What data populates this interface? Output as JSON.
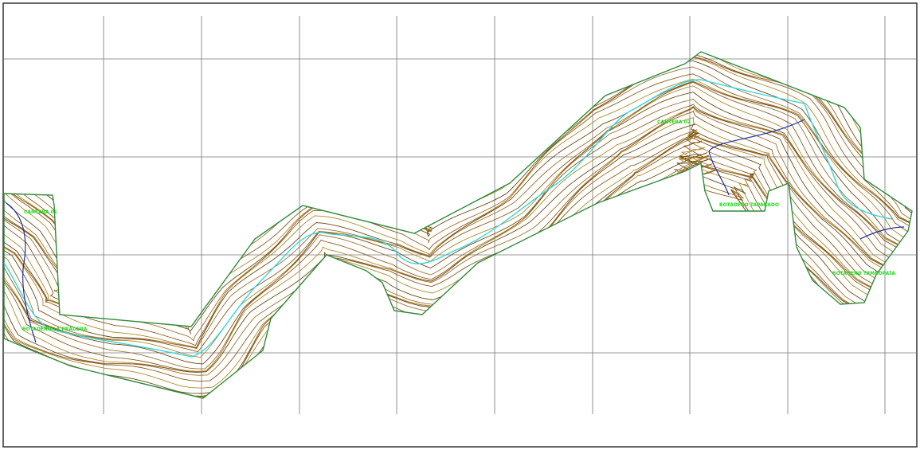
{
  "map": {
    "labels": [
      {
        "text": "CANTERA 01"
      },
      {
        "text": "BOTADERO LA PRADERA"
      },
      {
        "text": "CANTERA 02"
      },
      {
        "text": "BOTADERO TAPARADO"
      },
      {
        "text": "BOTADERO TAMBOPATA"
      }
    ]
  }
}
